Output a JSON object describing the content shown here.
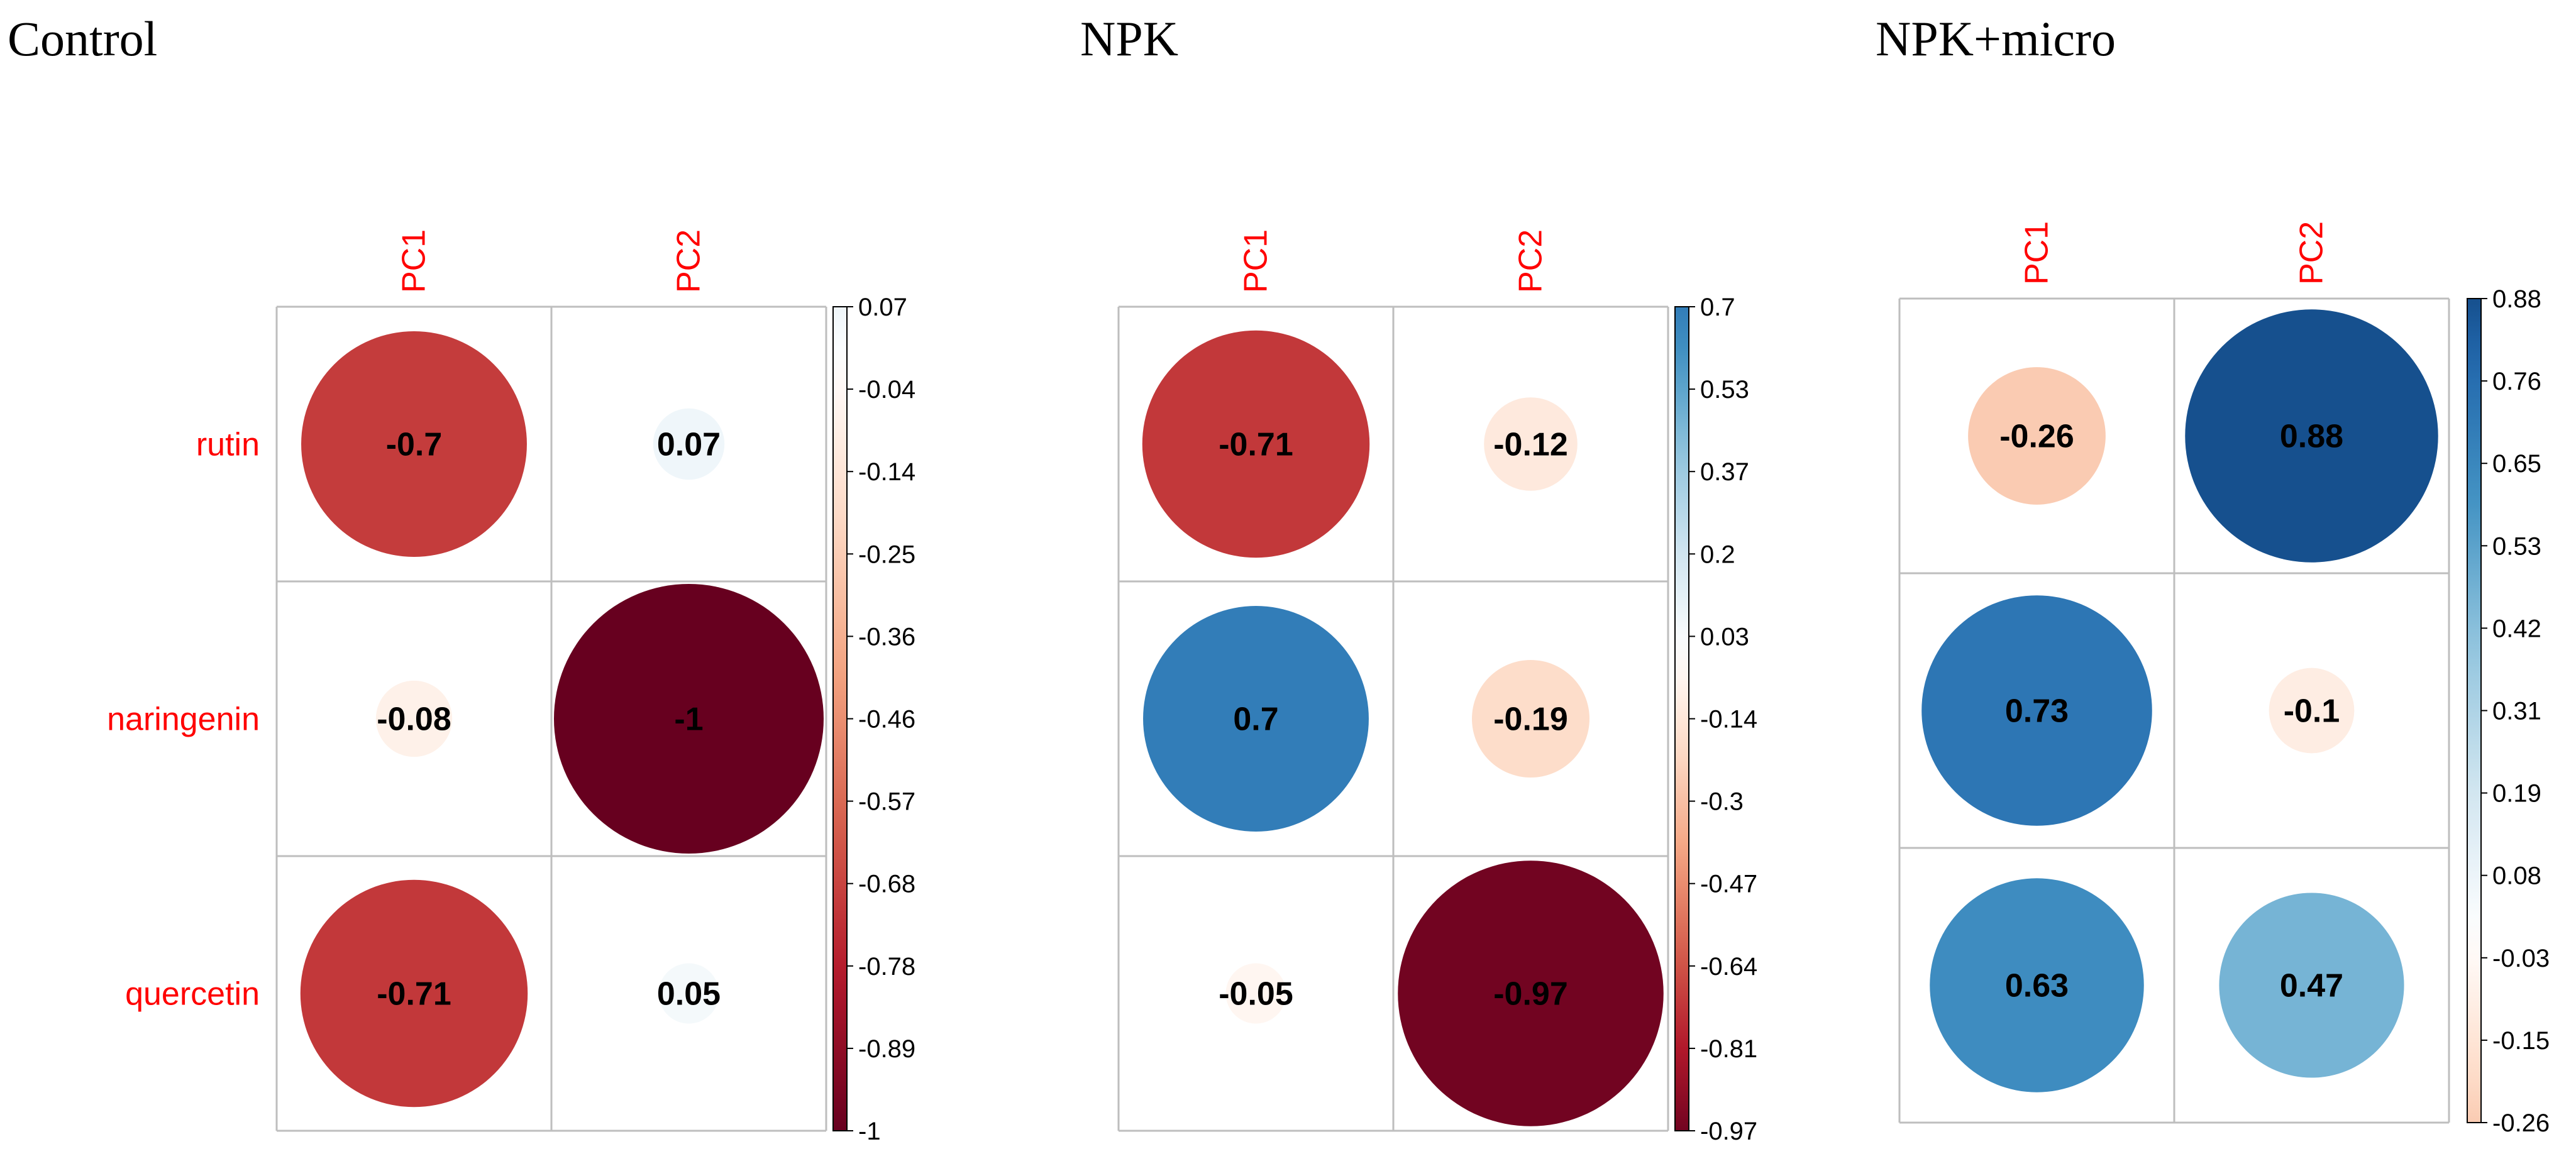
{
  "chart_data": [
    {
      "type": "heatmap",
      "title": "Control",
      "columns": [
        "PC1",
        "PC2"
      ],
      "rows": [
        "rutin",
        "naringenin",
        "quercetin"
      ],
      "values": [
        [
          -0.7,
          0.07
        ],
        [
          -0.08,
          -1
        ],
        [
          -0.71,
          0.05
        ]
      ],
      "value_labels": [
        [
          "-0.7",
          "0.07"
        ],
        [
          "-0.08",
          "-1"
        ],
        [
          "-0.71",
          "0.05"
        ]
      ],
      "colorbar": {
        "range": [
          -1,
          0.07
        ],
        "ticks": [
          "0.07",
          "-0.04",
          "-0.14",
          "-0.25",
          "-0.36",
          "-0.46",
          "-0.57",
          "-0.68",
          "-0.78",
          "-0.89",
          "-1"
        ]
      },
      "show_row_labels": true
    },
    {
      "type": "heatmap",
      "title": "NPK",
      "columns": [
        "PC1",
        "PC2"
      ],
      "rows": [
        "rutin",
        "naringenin",
        "quercetin"
      ],
      "values": [
        [
          -0.71,
          -0.12
        ],
        [
          0.7,
          -0.19
        ],
        [
          -0.05,
          -0.97
        ]
      ],
      "value_labels": [
        [
          "-0.71",
          "-0.12"
        ],
        [
          "0.7",
          "-0.19"
        ],
        [
          "-0.05",
          "-0.97"
        ]
      ],
      "colorbar": {
        "range": [
          -0.97,
          0.7
        ],
        "ticks": [
          "0.7",
          "0.53",
          "0.37",
          "0.2",
          "0.03",
          "-0.14",
          "-0.3",
          "-0.47",
          "-0.64",
          "-0.81",
          "-0.97"
        ]
      },
      "show_row_labels": false
    },
    {
      "type": "heatmap",
      "title": "NPK+micro",
      "columns": [
        "PC1",
        "PC2"
      ],
      "rows": [
        "rutin",
        "naringenin",
        "quercetin"
      ],
      "values": [
        [
          -0.26,
          0.88
        ],
        [
          0.73,
          -0.1
        ],
        [
          0.63,
          0.47
        ]
      ],
      "value_labels": [
        [
          "-0.26",
          "0.88"
        ],
        [
          "0.73",
          "-0.1"
        ],
        [
          "0.63",
          "0.47"
        ]
      ],
      "colorbar": {
        "range": [
          -0.26,
          0.88
        ],
        "ticks": [
          "0.88",
          "0.76",
          "0.65",
          "0.53",
          "0.42",
          "0.31",
          "0.19",
          "0.08",
          "-0.03",
          "-0.15",
          "-0.26"
        ]
      },
      "show_row_labels": false
    }
  ],
  "colors": {
    "scale": [
      "#67001F",
      "#B2182B",
      "#D6604D",
      "#F4A582",
      "#FDDBC7",
      "#FFFFFF",
      "#D1E5F0",
      "#92C5DE",
      "#4393C3",
      "#2166AC",
      "#053061"
    ],
    "label": "#FF0000",
    "grid": "#BEBEBE"
  }
}
